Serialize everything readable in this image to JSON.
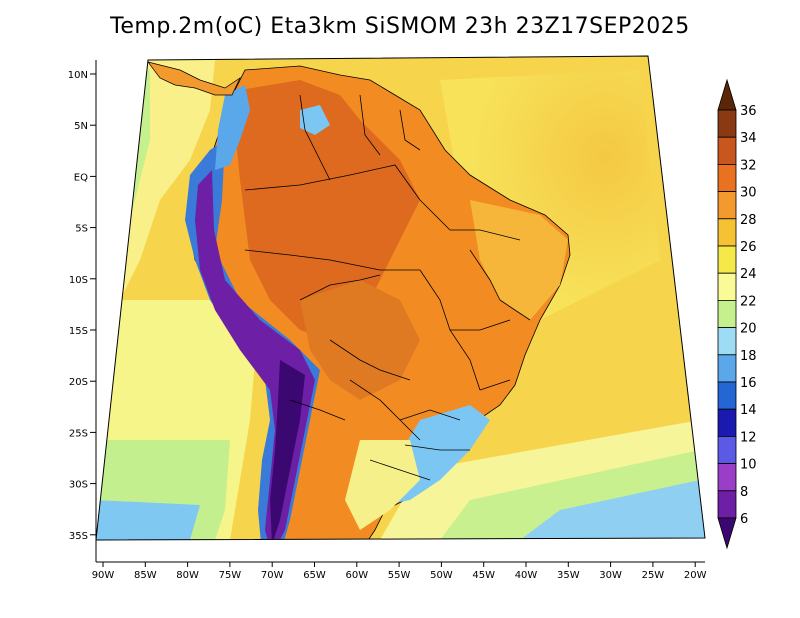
{
  "title": "Temp.2m(oC) Eta3km SiSMOM 23h 23Z17SEP2025",
  "colors": {
    "ocean_warm": "#f5d94f",
    "ocean_cool": "#f9f48a",
    "ocean_cold": "#c9f08f",
    "land_hot": "#f28a1e",
    "land_very_hot": "#d8601e",
    "andes_cold": "#6d1fa5",
    "andes_mid": "#2e66d4",
    "south_cool": "#7cc6f3",
    "border": "#000000"
  },
  "lat_labels": [
    "10N",
    "5N",
    "EQ",
    "5S",
    "10S",
    "15S",
    "20S",
    "25S",
    "30S",
    "35S"
  ],
  "lon_labels": [
    "90W",
    "85W",
    "80W",
    "75W",
    "70W",
    "65W",
    "60W",
    "55W",
    "50W",
    "45W",
    "40W",
    "35W",
    "30W",
    "25W",
    "20W"
  ],
  "colorbar": {
    "levels": [
      "36",
      "34",
      "32",
      "30",
      "28",
      "26",
      "24",
      "22",
      "20",
      "18",
      "16",
      "14",
      "12",
      "10",
      "8",
      "6"
    ],
    "colors": [
      "#5a2608",
      "#8a3a12",
      "#c8561f",
      "#e8721f",
      "#f29a2e",
      "#f5c233",
      "#f5e94a",
      "#fafa96",
      "#c6f08d",
      "#9edcf4",
      "#5aa8ea",
      "#2366d4",
      "#1a1ab0",
      "#5a5ae6",
      "#9a3ec8",
      "#6d1fa5",
      "#3a0870"
    ]
  }
}
